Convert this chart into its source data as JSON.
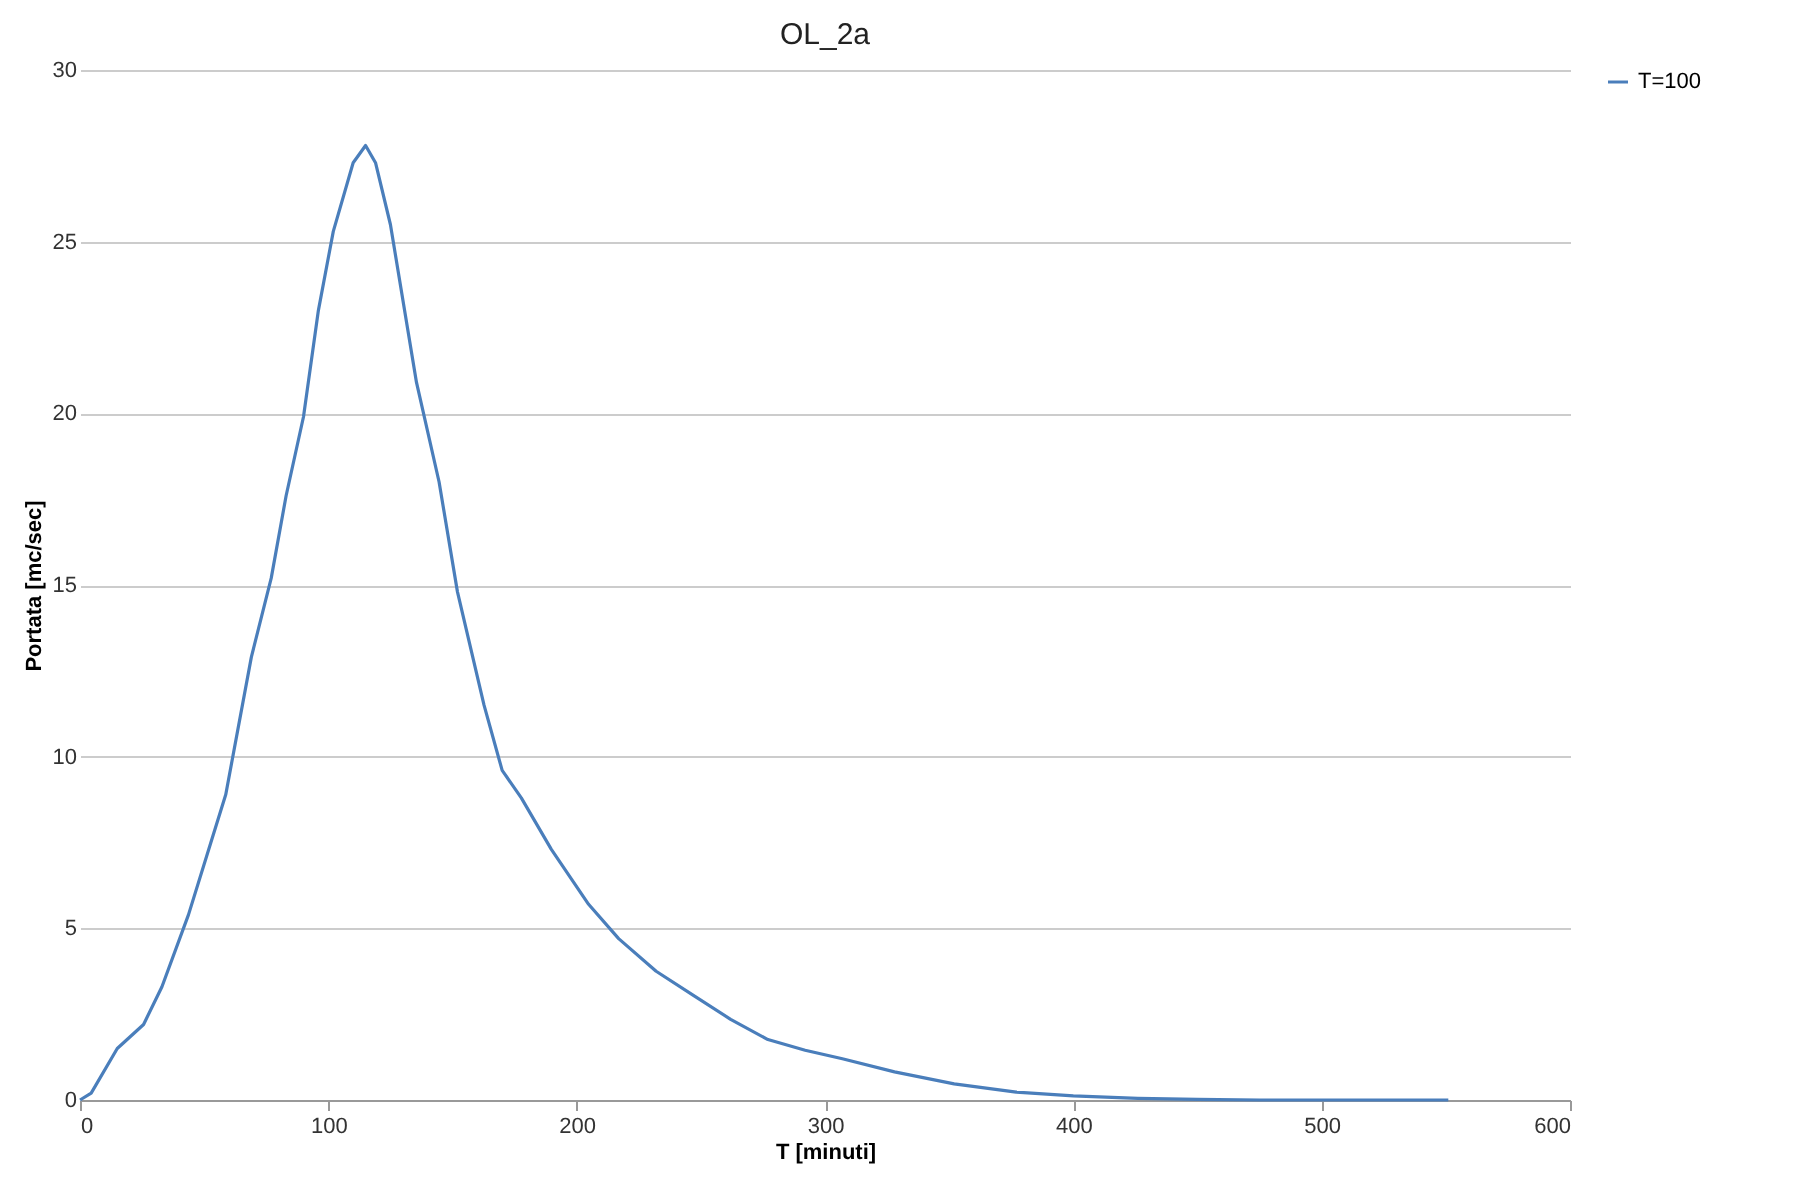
{
  "chart_data": {
    "type": "line",
    "title": "OL_2a",
    "xlabel": "T [minuti]",
    "ylabel": "Portata [mc/sec]",
    "x": [
      0,
      4.5,
      15,
      25.6,
      33,
      43.7,
      52.7,
      58.7,
      69,
      77,
      83,
      90,
      96,
      102,
      110,
      115,
      119,
      125,
      135.5,
      144.6,
      152,
      162.7,
      170,
      177.7,
      189.8,
      204.8,
      216.9,
      232,
      247,
      262,
      277,
      292,
      307,
      328,
      352,
      377,
      400,
      426,
      450,
      475,
      500,
      525,
      551
    ],
    "series": [
      {
        "name": "T=100",
        "color": "#4a7ebb",
        "values": [
          0,
          0.2,
          1.5,
          2.2,
          3.3,
          5.4,
          7.5,
          8.9,
          12.9,
          15.2,
          17.6,
          19.9,
          23,
          25.3,
          27.3,
          27.8,
          27.3,
          25.5,
          20.9,
          18,
          14.8,
          11.5,
          9.6,
          8.8,
          7.3,
          5.7,
          4.7,
          3.75,
          3.05,
          2.35,
          1.76,
          1.45,
          1.2,
          0.82,
          0.47,
          0.23,
          0.12,
          0.05,
          0.02,
          0,
          0,
          0,
          0
        ]
      }
    ],
    "xlim": [
      0,
      600
    ],
    "xticks": [
      0,
      100,
      200,
      300,
      400,
      500,
      600
    ],
    "ylim": [
      0,
      30
    ],
    "yticks": [
      0,
      5,
      10,
      15,
      20,
      25,
      30
    ],
    "grid": "y",
    "legend": "right",
    "marker": "none",
    "line_style": "solid"
  }
}
